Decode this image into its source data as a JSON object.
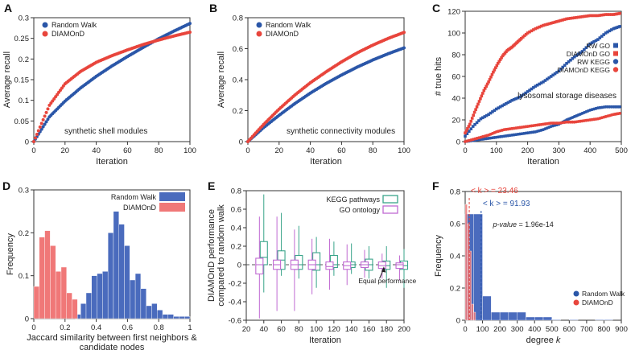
{
  "colors": {
    "blue": "#2a56a8",
    "red": "#e8453c",
    "red_light": "#f07878",
    "blue_bar": "#4a6bbd",
    "green": "#3aa48a",
    "pink": "#c06ad2",
    "grey": "#555555"
  },
  "chart_data": [
    {
      "panel": "A",
      "type": "line",
      "xlabel": "Iteration",
      "ylabel": "Average recall",
      "xlim": [
        0,
        100
      ],
      "ylim": [
        0,
        0.3
      ],
      "xticks": [
        "0",
        "20",
        "40",
        "60",
        "80",
        "100"
      ],
      "yticks": [
        "0",
        "0.05",
        "0.1",
        "0.15",
        "0.2",
        "0.25",
        "0.3"
      ],
      "annotation": "synthetic shell modules",
      "legend_position": "top-left",
      "series": [
        {
          "name": "Random Walk",
          "color": "blue",
          "x": [
            0,
            10,
            20,
            30,
            40,
            50,
            60,
            70,
            80,
            90,
            100
          ],
          "values": [
            0,
            0.06,
            0.098,
            0.13,
            0.158,
            0.183,
            0.206,
            0.228,
            0.249,
            0.268,
            0.286
          ]
        },
        {
          "name": "DIAMOnD",
          "color": "red",
          "x": [
            0,
            10,
            20,
            30,
            40,
            50,
            60,
            70,
            80,
            90,
            100
          ],
          "values": [
            0,
            0.088,
            0.14,
            0.17,
            0.192,
            0.208,
            0.222,
            0.235,
            0.246,
            0.256,
            0.265
          ]
        }
      ]
    },
    {
      "panel": "B",
      "type": "line",
      "xlabel": "Iteration",
      "ylabel": "Average recall",
      "xlim": [
        0,
        100
      ],
      "ylim": [
        0,
        0.8
      ],
      "xticks": [
        "0",
        "20",
        "40",
        "60",
        "80",
        "100"
      ],
      "yticks": [
        "0",
        "0.2",
        "0.4",
        "0.6",
        "0.8"
      ],
      "annotation": "synthetic connectivity modules",
      "legend_position": "top-left",
      "series": [
        {
          "name": "Random Walk",
          "color": "blue",
          "x": [
            0,
            10,
            20,
            30,
            40,
            50,
            60,
            70,
            80,
            90,
            100
          ],
          "values": [
            0,
            0.09,
            0.17,
            0.245,
            0.313,
            0.375,
            0.43,
            0.481,
            0.527,
            0.568,
            0.605
          ]
        },
        {
          "name": "DIAMOnD",
          "color": "red",
          "x": [
            0,
            10,
            20,
            30,
            40,
            50,
            60,
            70,
            80,
            90,
            100
          ],
          "values": [
            0,
            0.11,
            0.21,
            0.3,
            0.38,
            0.45,
            0.515,
            0.573,
            0.623,
            0.667,
            0.705
          ]
        }
      ]
    },
    {
      "panel": "C",
      "type": "scatter",
      "xlabel": "Iteration",
      "ylabel": "# true hits",
      "xlim": [
        0,
        500
      ],
      "ylim": [
        0,
        120
      ],
      "xticks": [
        "0",
        "100",
        "200",
        "300",
        "400",
        "500"
      ],
      "yticks": [
        "0",
        "20",
        "40",
        "60",
        "80",
        "100",
        "120"
      ],
      "annotation": "lysosomal storage diseases",
      "legend_position": "right",
      "series": [
        {
          "name": "RW GO",
          "color": "blue",
          "marker": "square",
          "x": [
            0,
            25,
            50,
            75,
            100,
            125,
            150,
            175,
            200,
            225,
            250,
            275,
            300,
            325,
            350,
            375,
            400,
            425,
            450,
            475,
            495
          ],
          "values": [
            5,
            14,
            21,
            25,
            30,
            34,
            38,
            41,
            46,
            51,
            55,
            60,
            65,
            72,
            78,
            83,
            90,
            94,
            100,
            104,
            106
          ]
        },
        {
          "name": "DIAMOnD GO",
          "color": "red",
          "marker": "square",
          "x": [
            0,
            15,
            30,
            45,
            60,
            75,
            90,
            105,
            120,
            135,
            150,
            165,
            180,
            200,
            225,
            250,
            275,
            300,
            325,
            350,
            375,
            400,
            425,
            450,
            475,
            495
          ],
          "values": [
            8,
            16,
            27,
            37,
            47,
            55,
            64,
            72,
            79,
            84,
            87,
            91,
            95,
            100,
            104,
            107,
            109,
            111,
            113,
            114,
            115,
            116,
            116,
            117,
            117,
            118
          ]
        },
        {
          "name": "RW KEGG",
          "color": "blue",
          "marker": "circle",
          "x": [
            0,
            25,
            50,
            75,
            100,
            125,
            150,
            175,
            200,
            225,
            250,
            275,
            300,
            325,
            350,
            375,
            400,
            425,
            450,
            475,
            495
          ],
          "values": [
            0,
            1,
            2,
            3,
            4,
            5,
            6,
            7,
            8,
            9,
            11,
            14,
            16,
            20,
            23,
            26,
            29,
            31,
            32,
            32,
            32
          ]
        },
        {
          "name": "DIAMOnD KEGG",
          "color": "red",
          "marker": "circle",
          "x": [
            0,
            25,
            50,
            75,
            100,
            125,
            150,
            175,
            200,
            225,
            250,
            275,
            300,
            325,
            350,
            375,
            400,
            425,
            450,
            475,
            495
          ],
          "values": [
            0,
            2,
            4,
            6,
            9,
            11,
            12,
            13,
            14,
            15,
            16,
            17,
            17,
            18,
            18,
            19,
            20,
            21,
            23,
            25,
            26
          ]
        }
      ]
    },
    {
      "panel": "D",
      "type": "bar",
      "xlabel": "Jaccard similarity between first neighbors & candidate nodes",
      "ylabel": "Frequency",
      "xlim": [
        0,
        1
      ],
      "ylim": [
        0,
        0.3
      ],
      "xticks": [
        "0",
        "0.2",
        "0.4",
        "0.6",
        "0.8",
        "1"
      ],
      "yticks": [
        "0",
        "0.1",
        "0.2",
        "0.3"
      ],
      "legend_position": "top-right",
      "bin_width": 0.035,
      "series": [
        {
          "name": "Random Walk",
          "color": "blue_bar",
          "x": [
            0.265,
            0.3,
            0.335,
            0.37,
            0.405,
            0.44,
            0.475,
            0.51,
            0.545,
            0.58,
            0.615,
            0.65,
            0.685,
            0.72,
            0.755,
            0.79,
            0.825,
            0.86,
            0.895,
            0.93,
            0.965
          ],
          "values": [
            0.01,
            0.035,
            0.06,
            0.1,
            0.105,
            0.11,
            0.2,
            0.25,
            0.22,
            0.17,
            0.09,
            0.105,
            0.07,
            0.03,
            0.035,
            0.02,
            0.01,
            0.01,
            0.005,
            0.005,
            0.005
          ]
        },
        {
          "name": "DIAMOnD",
          "color": "red_light",
          "x": [
            0.0,
            0.035,
            0.07,
            0.105,
            0.14,
            0.175,
            0.21,
            0.245,
            0.28
          ],
          "values": [
            0.075,
            0.19,
            0.205,
            0.17,
            0.11,
            0.12,
            0.06,
            0.045,
            0.0
          ]
        }
      ]
    },
    {
      "panel": "E",
      "type": "box",
      "xlabel": "Iteration",
      "ylabel": "DIAMOnD performance compared to random walk",
      "xlim": [
        20,
        200
      ],
      "ylim": [
        -0.6,
        0.8
      ],
      "xticks": [
        "20",
        "40",
        "60",
        "80",
        "100",
        "120",
        "140",
        "160",
        "180",
        "200"
      ],
      "yticks": [
        "-0.6",
        "-0.4",
        "-0.2",
        "0",
        "0.2",
        "0.4",
        "0.6",
        "0.8"
      ],
      "annotation": "Equal performance",
      "legend_position": "top-right",
      "series": [
        {
          "name": "KEGG pathways",
          "color": "green",
          "x": [
            40,
            60,
            80,
            100,
            120,
            140,
            160,
            180,
            200
          ],
          "box": [
            [
              -0.3,
              0.0,
              0.08,
              0.25,
              0.76
            ],
            [
              -0.12,
              -0.05,
              0.05,
              0.15,
              0.56
            ],
            [
              -0.15,
              -0.05,
              0.0,
              0.1,
              0.42
            ],
            [
              -0.25,
              -0.06,
              0.0,
              0.13,
              0.3
            ],
            [
              -0.12,
              -0.03,
              0.0,
              0.1,
              0.25
            ],
            [
              -0.1,
              -0.03,
              0.0,
              0.03,
              0.23
            ],
            [
              -0.15,
              -0.06,
              0.0,
              0.06,
              0.2
            ],
            [
              -0.25,
              -0.05,
              -0.01,
              0.04,
              0.2
            ],
            [
              -0.25,
              -0.05,
              -0.01,
              0.04,
              0.17
            ]
          ]
        },
        {
          "name": "GO ontology",
          "color": "pink",
          "x": [
            35,
            55,
            75,
            95,
            115,
            135,
            155,
            175,
            195
          ],
          "box": [
            [
              -0.58,
              -0.1,
              0.0,
              0.07,
              0.52
            ],
            [
              -0.5,
              -0.05,
              0.0,
              0.05,
              0.52
            ],
            [
              -0.5,
              -0.05,
              0.0,
              0.05,
              0.38
            ],
            [
              -0.32,
              -0.05,
              0.0,
              0.05,
              0.28
            ],
            [
              -0.27,
              -0.05,
              -0.02,
              0.03,
              0.28
            ],
            [
              -0.22,
              -0.05,
              -0.01,
              0.03,
              0.22
            ],
            [
              -0.14,
              -0.03,
              0.0,
              0.03,
              0.16
            ],
            [
              -0.15,
              -0.04,
              -0.01,
              0.03,
              0.12
            ],
            [
              -0.17,
              -0.04,
              0.0,
              0.02,
              0.1
            ]
          ]
        }
      ]
    },
    {
      "panel": "F",
      "type": "bar",
      "xlabel": "degree k",
      "ylabel": "Frequency",
      "xlim": [
        0,
        900
      ],
      "ylim": [
        0,
        0.8
      ],
      "xticks": [
        "0",
        "100",
        "200",
        "300",
        "400",
        "500",
        "600",
        "700",
        "800",
        "900"
      ],
      "yticks": [
        "0",
        "0.2",
        "0.4",
        "0.6",
        "0.8"
      ],
      "legend_position": "bottom-right",
      "annotations": {
        "red_mean": "< k > =  23.46",
        "blue_mean": "< k > =  91.93",
        "pvalue": "p-value = 1.96e-14"
      },
      "means": {
        "red": 23.46,
        "blue": 91.93
      },
      "series": [
        {
          "name": "Random Walk",
          "color": "blue_bar",
          "bin_width": 50,
          "x": [
            0,
            50,
            100,
            150,
            200,
            250,
            300,
            350,
            400,
            450,
            500,
            550,
            600,
            650,
            700,
            750,
            800
          ],
          "values": [
            0.66,
            0.66,
            0.15,
            0.05,
            0.05,
            0.05,
            0.05,
            0.02,
            0.02,
            0.02,
            0.004,
            0.0,
            0.004,
            0.0,
            0.0,
            0.004,
            0.004
          ]
        },
        {
          "name": "DIAMOnD",
          "color": "red_light",
          "bin_width": 12,
          "x": [
            0,
            12,
            24,
            36,
            48
          ],
          "values": [
            0.72,
            0.6,
            0.43,
            0.1,
            0.05
          ]
        }
      ]
    }
  ]
}
